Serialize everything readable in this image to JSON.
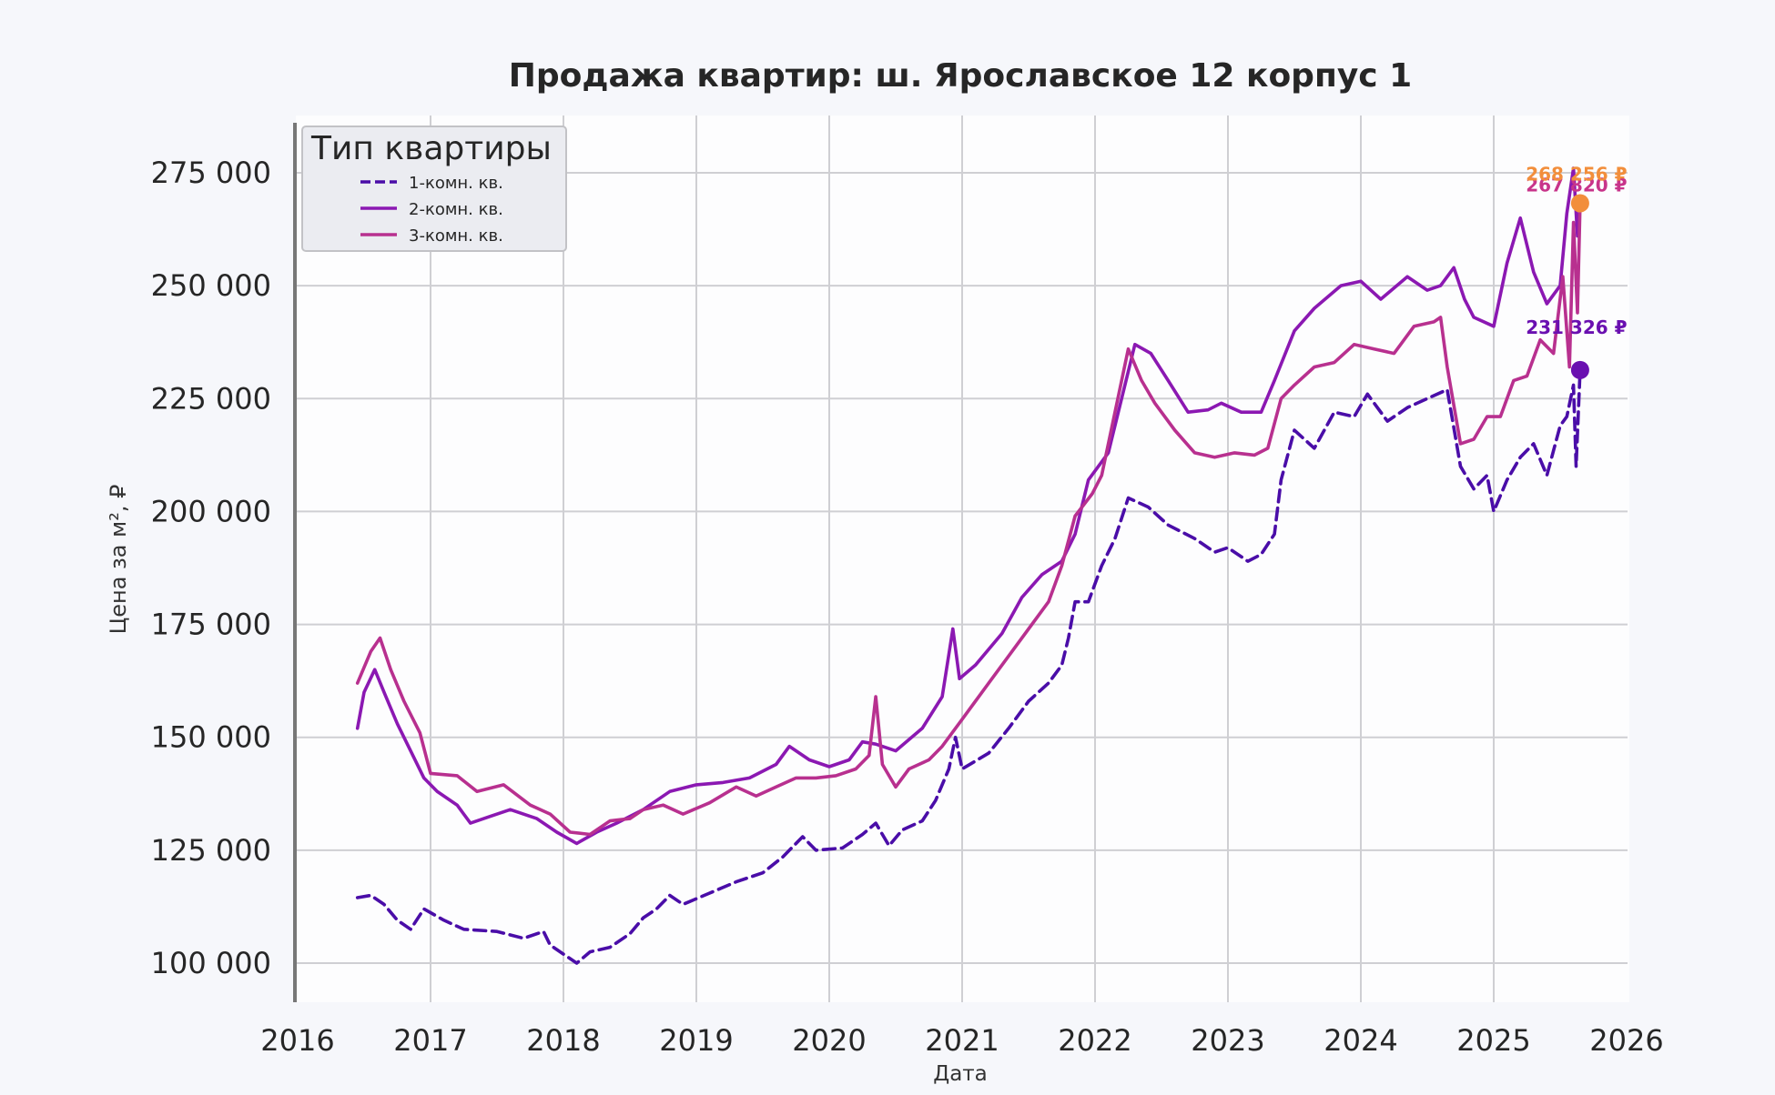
{
  "chart_data": {
    "type": "line",
    "title": "Продажа квартир: ш. Ярославское 12 корпус 1",
    "xlabel": "Дата",
    "ylabel": "Цена за м², ₽",
    "xlim": [
      2016.0,
      2026.0
    ],
    "ylim": [
      92000,
      285000
    ],
    "xticks": [
      "2016",
      "2017",
      "2018",
      "2019",
      "2020",
      "2021",
      "2022",
      "2023",
      "2024",
      "2025",
      "2026"
    ],
    "yticks": [
      "100 000",
      "125 000",
      "150 000",
      "175 000",
      "200 000",
      "225 000",
      "250 000",
      "275 000"
    ],
    "ytick_values": [
      100000,
      125000,
      150000,
      175000,
      200000,
      225000,
      250000,
      275000
    ],
    "grid": true,
    "legend": {
      "title": "Тип квартиры",
      "placement": "top-left"
    },
    "colors": {
      "s1": "#4a0da8",
      "s2": "#8b18b2",
      "s3": "#b8308f",
      "last_label3": "#f28e3b"
    },
    "series": [
      {
        "name": "1-комн. кв.",
        "color": "#4a0da8",
        "dash": "dashed",
        "points": [
          [
            2016.45,
            114500
          ],
          [
            2016.55,
            115000
          ],
          [
            2016.65,
            113000
          ],
          [
            2016.75,
            109500
          ],
          [
            2016.85,
            107500
          ],
          [
            2016.95,
            112000
          ],
          [
            2017.1,
            109500
          ],
          [
            2017.25,
            107500
          ],
          [
            2017.5,
            107000
          ],
          [
            2017.7,
            105500
          ],
          [
            2017.85,
            107000
          ],
          [
            2017.9,
            104000
          ],
          [
            2018.0,
            102000
          ],
          [
            2018.1,
            100000
          ],
          [
            2018.2,
            102500
          ],
          [
            2018.35,
            103500
          ],
          [
            2018.5,
            106500
          ],
          [
            2018.6,
            110000
          ],
          [
            2018.7,
            112000
          ],
          [
            2018.8,
            115000
          ],
          [
            2018.9,
            113000
          ],
          [
            2019.1,
            115500
          ],
          [
            2019.3,
            118000
          ],
          [
            2019.5,
            120000
          ],
          [
            2019.65,
            123500
          ],
          [
            2019.8,
            128000
          ],
          [
            2019.9,
            125000
          ],
          [
            2020.1,
            125500
          ],
          [
            2020.25,
            128500
          ],
          [
            2020.35,
            131000
          ],
          [
            2020.45,
            126000
          ],
          [
            2020.55,
            129500
          ],
          [
            2020.7,
            131500
          ],
          [
            2020.8,
            136000
          ],
          [
            2020.9,
            143000
          ],
          [
            2020.95,
            150000
          ],
          [
            2021.0,
            143000
          ],
          [
            2021.2,
            146500
          ],
          [
            2021.35,
            152000
          ],
          [
            2021.5,
            158000
          ],
          [
            2021.65,
            162000
          ],
          [
            2021.75,
            166000
          ],
          [
            2021.8,
            172000
          ],
          [
            2021.85,
            180000
          ],
          [
            2021.95,
            180000
          ],
          [
            2022.05,
            188000
          ],
          [
            2022.15,
            194000
          ],
          [
            2022.25,
            203000
          ],
          [
            2022.4,
            201000
          ],
          [
            2022.55,
            197000
          ],
          [
            2022.75,
            194000
          ],
          [
            2022.9,
            191000
          ],
          [
            2023.0,
            192000
          ],
          [
            2023.15,
            189000
          ],
          [
            2023.25,
            190500
          ],
          [
            2023.35,
            195000
          ],
          [
            2023.4,
            207000
          ],
          [
            2023.5,
            218000
          ],
          [
            2023.65,
            214000
          ],
          [
            2023.8,
            222000
          ],
          [
            2023.95,
            221000
          ],
          [
            2024.05,
            226000
          ],
          [
            2024.2,
            220000
          ],
          [
            2024.35,
            223000
          ],
          [
            2024.5,
            225000
          ],
          [
            2024.65,
            227000
          ],
          [
            2024.75,
            210000
          ],
          [
            2024.85,
            205000
          ],
          [
            2024.95,
            208000
          ],
          [
            2025.0,
            200000
          ],
          [
            2025.1,
            207000
          ],
          [
            2025.2,
            212000
          ],
          [
            2025.3,
            215000
          ],
          [
            2025.4,
            208000
          ],
          [
            2025.5,
            219000
          ],
          [
            2025.55,
            221000
          ],
          [
            2025.6,
            228000
          ],
          [
            2025.62,
            210000
          ],
          [
            2025.65,
            231326
          ]
        ]
      },
      {
        "name": "2-комн. кв.",
        "color": "#8b18b2",
        "dash": "solid",
        "points": [
          [
            2016.45,
            152000
          ],
          [
            2016.5,
            160000
          ],
          [
            2016.58,
            165000
          ],
          [
            2016.65,
            160000
          ],
          [
            2016.75,
            153000
          ],
          [
            2016.85,
            147000
          ],
          [
            2016.95,
            141000
          ],
          [
            2017.05,
            138000
          ],
          [
            2017.2,
            135000
          ],
          [
            2017.3,
            131000
          ],
          [
            2017.45,
            132500
          ],
          [
            2017.6,
            134000
          ],
          [
            2017.8,
            132000
          ],
          [
            2017.95,
            129000
          ],
          [
            2018.1,
            126500
          ],
          [
            2018.25,
            129000
          ],
          [
            2018.4,
            131000
          ],
          [
            2018.6,
            134000
          ],
          [
            2018.8,
            138000
          ],
          [
            2019.0,
            139500
          ],
          [
            2019.2,
            140000
          ],
          [
            2019.4,
            141000
          ],
          [
            2019.6,
            144000
          ],
          [
            2019.7,
            148000
          ],
          [
            2019.85,
            145000
          ],
          [
            2020.0,
            143500
          ],
          [
            2020.15,
            145000
          ],
          [
            2020.25,
            149000
          ],
          [
            2020.35,
            148500
          ],
          [
            2020.5,
            147000
          ],
          [
            2020.7,
            152000
          ],
          [
            2020.85,
            159000
          ],
          [
            2020.93,
            174000
          ],
          [
            2020.98,
            163000
          ],
          [
            2021.1,
            166000
          ],
          [
            2021.3,
            173000
          ],
          [
            2021.45,
            181000
          ],
          [
            2021.6,
            186000
          ],
          [
            2021.75,
            189000
          ],
          [
            2021.85,
            195000
          ],
          [
            2021.95,
            207000
          ],
          [
            2022.1,
            213000
          ],
          [
            2022.2,
            225000
          ],
          [
            2022.3,
            237000
          ],
          [
            2022.42,
            235000
          ],
          [
            2022.55,
            229000
          ],
          [
            2022.7,
            222000
          ],
          [
            2022.85,
            222500
          ],
          [
            2022.95,
            224000
          ],
          [
            2023.1,
            222000
          ],
          [
            2023.25,
            222000
          ],
          [
            2023.35,
            229000
          ],
          [
            2023.5,
            240000
          ],
          [
            2023.65,
            245000
          ],
          [
            2023.85,
            250000
          ],
          [
            2024.0,
            251000
          ],
          [
            2024.15,
            247000
          ],
          [
            2024.35,
            252000
          ],
          [
            2024.5,
            249000
          ],
          [
            2024.6,
            250000
          ],
          [
            2024.7,
            254000
          ],
          [
            2024.78,
            247000
          ],
          [
            2024.85,
            243000
          ],
          [
            2025.0,
            241000
          ],
          [
            2025.1,
            255000
          ],
          [
            2025.2,
            265000
          ],
          [
            2025.3,
            253000
          ],
          [
            2025.4,
            246000
          ],
          [
            2025.5,
            250000
          ],
          [
            2025.55,
            266000
          ],
          [
            2025.6,
            276000
          ],
          [
            2025.63,
            261000
          ],
          [
            2025.65,
            267820
          ]
        ]
      },
      {
        "name": "3-комн. кв.",
        "color": "#b8308f",
        "dash": "solid",
        "points": [
          [
            2016.45,
            162000
          ],
          [
            2016.55,
            169000
          ],
          [
            2016.62,
            172000
          ],
          [
            2016.7,
            165000
          ],
          [
            2016.8,
            158000
          ],
          [
            2016.92,
            151000
          ],
          [
            2017.0,
            142000
          ],
          [
            2017.2,
            141500
          ],
          [
            2017.35,
            138000
          ],
          [
            2017.55,
            139500
          ],
          [
            2017.75,
            135000
          ],
          [
            2017.9,
            133000
          ],
          [
            2018.05,
            129000
          ],
          [
            2018.2,
            128500
          ],
          [
            2018.35,
            131500
          ],
          [
            2018.5,
            132000
          ],
          [
            2018.6,
            134000
          ],
          [
            2018.75,
            135000
          ],
          [
            2018.9,
            133000
          ],
          [
            2019.1,
            135500
          ],
          [
            2019.3,
            139000
          ],
          [
            2019.45,
            137000
          ],
          [
            2019.6,
            139000
          ],
          [
            2019.75,
            141000
          ],
          [
            2019.9,
            141000
          ],
          [
            2020.05,
            141500
          ],
          [
            2020.2,
            143000
          ],
          [
            2020.3,
            146000
          ],
          [
            2020.35,
            159000
          ],
          [
            2020.4,
            144000
          ],
          [
            2020.5,
            139000
          ],
          [
            2020.6,
            143000
          ],
          [
            2020.75,
            145000
          ],
          [
            2020.85,
            148000
          ],
          [
            2021.0,
            154000
          ],
          [
            2021.1,
            158000
          ],
          [
            2021.2,
            162000
          ],
          [
            2021.35,
            168000
          ],
          [
            2021.5,
            174000
          ],
          [
            2021.65,
            180000
          ],
          [
            2021.75,
            188000
          ],
          [
            2021.85,
            199000
          ],
          [
            2021.98,
            204000
          ],
          [
            2022.05,
            208000
          ],
          [
            2022.15,
            222000
          ],
          [
            2022.25,
            236000
          ],
          [
            2022.35,
            229000
          ],
          [
            2022.45,
            224000
          ],
          [
            2022.6,
            218000
          ],
          [
            2022.75,
            213000
          ],
          [
            2022.9,
            212000
          ],
          [
            2023.05,
            213000
          ],
          [
            2023.2,
            212500
          ],
          [
            2023.3,
            214000
          ],
          [
            2023.4,
            225000
          ],
          [
            2023.5,
            228000
          ],
          [
            2023.65,
            232000
          ],
          [
            2023.8,
            233000
          ],
          [
            2023.95,
            237000
          ],
          [
            2024.1,
            236000
          ],
          [
            2024.25,
            235000
          ],
          [
            2024.4,
            241000
          ],
          [
            2024.55,
            242000
          ],
          [
            2024.6,
            243000
          ],
          [
            2024.65,
            232000
          ],
          [
            2024.75,
            215000
          ],
          [
            2024.85,
            216000
          ],
          [
            2024.95,
            221000
          ],
          [
            2025.05,
            221000
          ],
          [
            2025.15,
            229000
          ],
          [
            2025.25,
            230000
          ],
          [
            2025.35,
            238000
          ],
          [
            2025.45,
            235000
          ],
          [
            2025.52,
            252000
          ],
          [
            2025.57,
            232000
          ],
          [
            2025.6,
            264000
          ],
          [
            2025.63,
            244000
          ],
          [
            2025.65,
            268256
          ]
        ]
      }
    ],
    "end_labels": [
      {
        "series": "1-комн. кв.",
        "value": 231326,
        "label": "231 326 ₽",
        "color": "#6a10b0"
      },
      {
        "series": "2-комн. кв.",
        "value": 267820,
        "label": "267 820 ₽",
        "color": "#c8348a"
      },
      {
        "series": "3-комн. кв.",
        "value": 268256,
        "label": "268 256 ₽",
        "color": "#f28e3b"
      }
    ]
  }
}
